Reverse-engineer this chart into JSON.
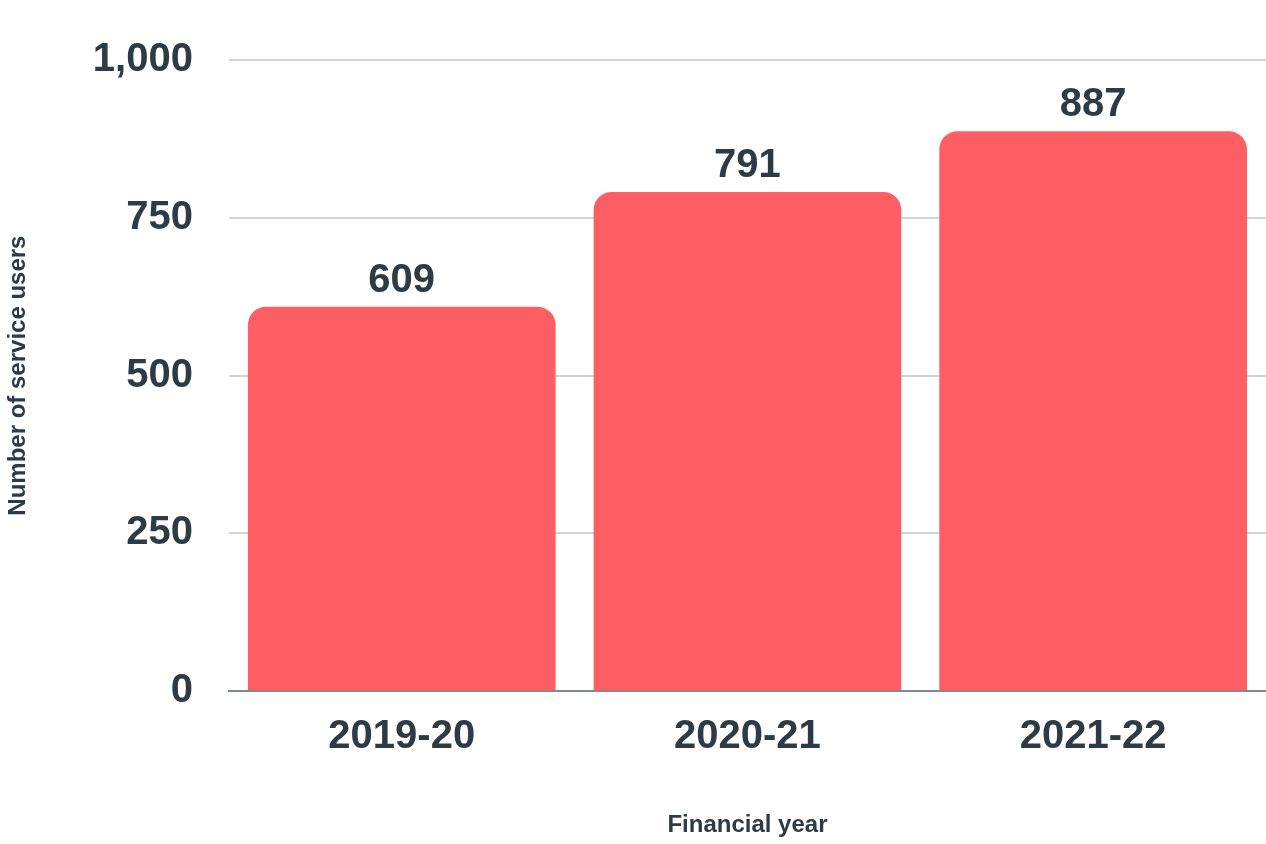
{
  "chart_data": {
    "type": "bar",
    "xlabel": "Financial year",
    "ylabel": "Number of service users",
    "categories": [
      "2019-20",
      "2020-21",
      "2021-22"
    ],
    "values": [
      609,
      791,
      887
    ],
    "color": "#ff5f64",
    "ylim": [
      0,
      1000
    ],
    "yticks": [
      0,
      {
        "value": 250,
        "label": "250"
      },
      {
        "value": 500,
        "label": "500"
      },
      {
        "value": 750,
        "label": "750"
      },
      {
        "value": 1000,
        "label": "1,000"
      }
    ],
    "grid": "y",
    "data_labels": true,
    "legend": false
  }
}
